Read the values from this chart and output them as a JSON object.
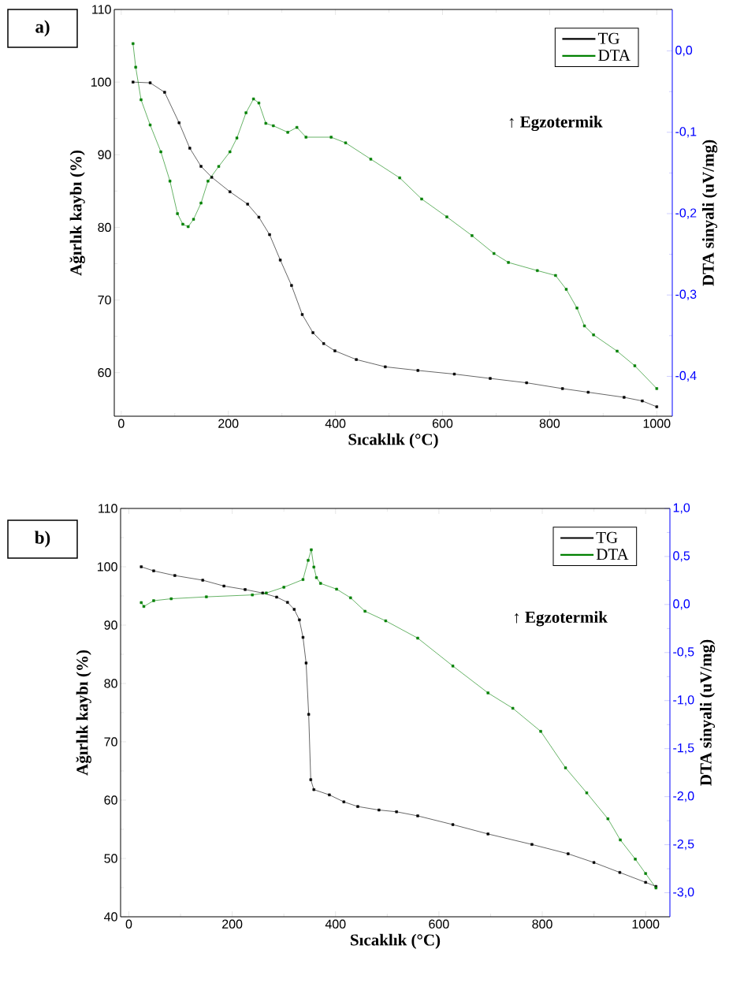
{
  "chart_data": [
    {
      "type": "line",
      "title": "a)",
      "xlabel": "Sıcaklık (°C)",
      "ylabel": "Ağırlık kaybı (%)",
      "y2label": "DTA sinyali (uV/mg)",
      "annotations": [
        "↑ Egzotermik"
      ],
      "xlim": [
        -13,
        1029
      ],
      "xticks": [
        0,
        200,
        400,
        600,
        800,
        1000
      ],
      "ylim": [
        54,
        110
      ],
      "yticks": [
        60,
        70,
        80,
        90,
        100,
        110
      ],
      "y2lim": [
        -0.449,
        0.051
      ],
      "y2ticks": [
        {
          "value": -0.4,
          "label": "-0,4"
        },
        {
          "value": -0.3,
          "label": "-0,3"
        },
        {
          "value": -0.2,
          "label": "-0,2"
        },
        {
          "value": -0.1,
          "label": "-0,1"
        },
        {
          "value": 0.0,
          "label": "0,0"
        }
      ],
      "legend": "top right",
      "marker": "square",
      "line_style": "solid",
      "series": [
        {
          "name": "TG",
          "color": "#000000",
          "x": [
            22,
            54,
            81,
            108,
            128,
            149,
            169,
            203,
            236,
            257,
            277,
            297,
            318,
            338,
            358,
            378,
            399,
            439,
            493,
            554,
            622,
            689,
            757,
            824,
            872,
            939,
            973,
            1000
          ],
          "values": [
            100,
            99.9,
            98.6,
            94.4,
            90.9,
            88.4,
            86.9,
            84.9,
            83.2,
            81.4,
            79.0,
            75.5,
            72.0,
            68.0,
            65.5,
            64.0,
            63.0,
            61.8,
            60.8,
            60.3,
            59.8,
            59.2,
            58.6,
            57.8,
            57.3,
            56.6,
            56.1,
            55.3
          ]
        },
        {
          "name": "DTA",
          "color": "#008000",
          "axis": "y2",
          "x": [
            22,
            27,
            37,
            54,
            74,
            91,
            105,
            115,
            125,
            135,
            149,
            162,
            182,
            203,
            216,
            233,
            247,
            257,
            270,
            284,
            311,
            328,
            345,
            392,
            419,
            466,
            520,
            561,
            608,
            655,
            696,
            723,
            777,
            811,
            831,
            851,
            865,
            882,
            926,
            959,
            1000
          ],
          "values": [
            0.009,
            -0.02,
            -0.06,
            -0.091,
            -0.124,
            -0.16,
            -0.2,
            -0.213,
            -0.216,
            -0.207,
            -0.187,
            -0.16,
            -0.142,
            -0.124,
            -0.107,
            -0.076,
            -0.059,
            -0.064,
            -0.089,
            -0.092,
            -0.1,
            -0.094,
            -0.106,
            -0.106,
            -0.113,
            -0.133,
            -0.156,
            -0.182,
            -0.204,
            -0.227,
            -0.249,
            -0.26,
            -0.27,
            -0.276,
            -0.293,
            -0.316,
            -0.338,
            -0.349,
            -0.369,
            -0.387,
            -0.415
          ]
        }
      ]
    },
    {
      "type": "line",
      "title": "b)",
      "xlabel": "Sıcaklık (°C)",
      "ylabel": "Ağırlık kaybı (%)",
      "y2label": "DTA sinyali (uV/mg)",
      "annotations": [
        "↑ Egzotermik"
      ],
      "xlim": [
        -16,
        1047
      ],
      "xticks": [
        0,
        200,
        400,
        600,
        800,
        1000
      ],
      "ylim": [
        40,
        110
      ],
      "yticks": [
        40,
        50,
        60,
        70,
        80,
        90,
        100,
        110
      ],
      "y2lim": [
        -3.25,
        1.0
      ],
      "y2ticks": [
        {
          "value": -3.0,
          "label": "-3,0"
        },
        {
          "value": -2.5,
          "label": "-2,5"
        },
        {
          "value": -2.0,
          "label": "-2,0"
        },
        {
          "value": -1.5,
          "label": "-1,5"
        },
        {
          "value": -1.0,
          "label": "-1,0"
        },
        {
          "value": -0.5,
          "label": "-0,5"
        },
        {
          "value": 0.0,
          "label": "0,0"
        },
        {
          "value": 0.5,
          "label": "0,5"
        },
        {
          "value": 1.0,
          "label": "1,0"
        }
      ],
      "legend": "top right",
      "marker": "square",
      "line_style": "solid",
      "series": [
        {
          "name": "TG",
          "color": "#000000",
          "x": [
            24,
            48,
            89,
            143,
            184,
            225,
            259,
            286,
            307,
            320,
            330,
            337,
            343,
            348,
            352,
            358,
            388,
            416,
            443,
            484,
            518,
            559,
            627,
            695,
            780,
            850,
            900,
            950,
            1000,
            1020
          ],
          "values": [
            100,
            99.3,
            98.5,
            97.7,
            96.7,
            96.1,
            95.5,
            94.8,
            93.9,
            92.7,
            90.9,
            87.9,
            83.5,
            74.7,
            63.5,
            61.8,
            60.9,
            59.7,
            58.9,
            58.3,
            58.0,
            57.3,
            55.8,
            54.2,
            52.4,
            50.8,
            49.3,
            47.6,
            45.9,
            45.2
          ]
        },
        {
          "name": "DTA",
          "color": "#008000",
          "axis": "y2",
          "x": [
            24,
            29,
            48,
            82,
            150,
            239,
            266,
            300,
            337,
            347,
            353,
            358,
            363,
            371,
            402,
            429,
            457,
            497,
            559,
            627,
            695,
            743,
            797,
            845,
            886,
            927,
            951,
            980,
            1000,
            1020
          ],
          "values": [
            0.02,
            -0.02,
            0.04,
            0.06,
            0.08,
            0.1,
            0.12,
            0.18,
            0.26,
            0.46,
            0.57,
            0.39,
            0.28,
            0.22,
            0.16,
            0.07,
            -0.07,
            -0.17,
            -0.35,
            -0.64,
            -0.92,
            -1.08,
            -1.32,
            -1.7,
            -1.96,
            -2.23,
            -2.45,
            -2.65,
            -2.8,
            -2.95
          ]
        }
      ]
    }
  ]
}
